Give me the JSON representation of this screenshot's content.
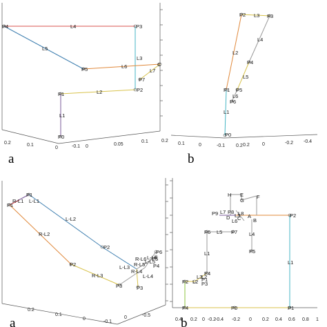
{
  "colors": {
    "red": "#d9534f",
    "cyan": "#45b5c4",
    "blue": "#3f7fb0",
    "orange": "#e0883a",
    "yellow": "#d8c24a",
    "purple": "#7a5a9a",
    "green": "#8cc63f",
    "grey": "#999999",
    "axis": "#555555"
  },
  "panels": {
    "a": {
      "letter": "a",
      "ticks_x1": [
        "0.2",
        "0.1",
        "0",
        "-0.1"
      ],
      "ticks_x2": [
        "0",
        "0.05",
        "0.1"
      ],
      "points": [
        "P4",
        "P3",
        "P5",
        "C",
        "P7",
        "P2",
        "P1",
        "P0"
      ],
      "links": [
        "L4",
        "L5",
        "L3",
        "L6",
        "L7",
        "L2",
        "L1"
      ]
    },
    "b": {
      "letter": "b",
      "ticks_x1": [
        "0.2",
        "0.1",
        "0",
        "-0.1",
        "0.2"
      ],
      "ticks_x2": [
        "0.2",
        "0",
        "-0.2",
        "-0.4"
      ],
      "points": [
        "P2",
        "P3",
        "P4",
        "P1",
        "P5",
        "P6",
        "P0"
      ],
      "links": [
        "L3",
        "L2",
        "L4",
        "L5",
        "L6",
        "L1"
      ]
    },
    "c": {
      "letter": "a",
      "ticks_x1": [
        "0.2",
        "0.1",
        "0",
        "-0.1"
      ],
      "ticks_x2": [
        "0",
        "-0.5"
      ],
      "points": [
        "P1",
        "P1",
        "P2",
        "P2",
        "P3",
        "P3",
        "P6",
        "P5",
        "P4"
      ],
      "links": [
        "L-L1",
        "R-L1",
        "L-L2",
        "R-L2",
        "L-L3",
        "R-L3",
        "L-L4",
        "R-L4",
        "L-L5",
        "R-L5",
        "L-L6",
        "R-L6"
      ]
    },
    "d": {
      "letter": "b",
      "ticks_x1": [
        "0.4",
        "0.2",
        "0",
        "-0.2",
        "-0.4"
      ],
      "ticks_x2": [
        "-0.2",
        "0",
        "0.2",
        "0.4",
        "0.6",
        "0.8",
        "1"
      ],
      "points": [
        "H",
        "E",
        "G",
        "F",
        "P9",
        "P8",
        "D",
        "C",
        "B",
        "A",
        "P2",
        "P6",
        "P7",
        "P5",
        "P4",
        "P3",
        "P2",
        "P1",
        "P4",
        "P0",
        "P1"
      ],
      "links": [
        "L7",
        "L8",
        "L3",
        "L6",
        "L5",
        "L4",
        "L2",
        "L1",
        "L1",
        "L2",
        "L3"
      ]
    }
  }
}
